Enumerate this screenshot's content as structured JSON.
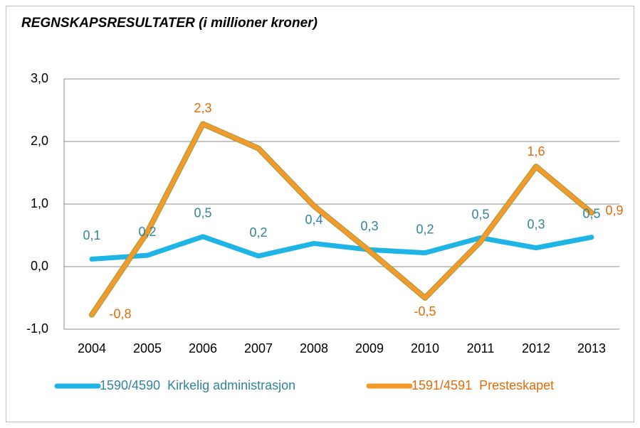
{
  "chart_data": {
    "type": "line",
    "title": "REGNSKAPSRESULTATER  (i millioner kroner)",
    "categories": [
      "2004",
      "2005",
      "2006",
      "2007",
      "2008",
      "2009",
      "2010",
      "2011",
      "2012",
      "2013"
    ],
    "series": [
      {
        "name": "1590/4590  Kirkelig administrasjon",
        "color": "#1fb4e6",
        "label_color": "#31849b",
        "values": [
          0.12,
          0.18,
          0.48,
          0.17,
          0.37,
          0.27,
          0.22,
          0.46,
          0.3,
          0.47
        ],
        "value_labels": [
          "0,1",
          "0,2",
          "0,5",
          "0,2",
          "0,4",
          "0,3",
          "0,2",
          "0,5",
          "0,3",
          "0,5"
        ]
      },
      {
        "name": "1591/4591  Presteskapet",
        "color": "#f39a2d",
        "label_color": "#e36c09",
        "values": [
          -0.77,
          0.55,
          2.28,
          1.89,
          0.97,
          0.25,
          -0.5,
          0.4,
          1.6,
          0.86
        ],
        "value_labels": [
          "-0,8",
          null,
          "2,3",
          null,
          null,
          null,
          "-0,5",
          null,
          "1,6",
          "0,9"
        ]
      }
    ],
    "ylim": [
      -1.0,
      3.0
    ],
    "yticks": [
      {
        "value": -1.0,
        "label": "-1,0"
      },
      {
        "value": 0.0,
        "label": "0,0"
      },
      {
        "value": 1.0,
        "label": "1,0"
      },
      {
        "value": 2.0,
        "label": "2,0"
      },
      {
        "value": 3.0,
        "label": "3,0"
      }
    ],
    "grid": true,
    "legend": "bottom"
  }
}
